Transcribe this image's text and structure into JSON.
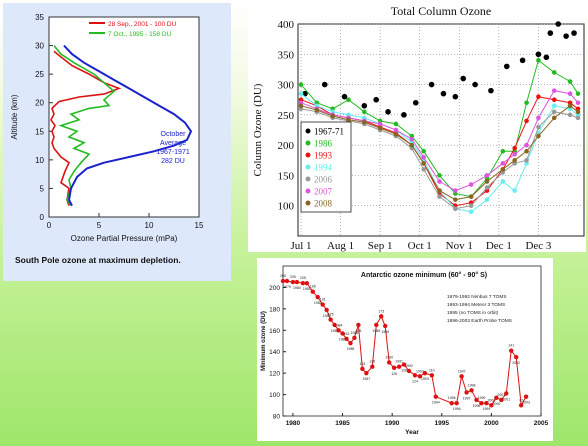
{
  "chart_data": [
    {
      "type": "line",
      "title": "",
      "caption": "South Pole ozone at maximum depletion.",
      "xlabel": "Ozone Partial Pressure (mPa)",
      "ylabel": "Altitude (km)",
      "xlim": [
        0,
        15
      ],
      "ylim": [
        0,
        35
      ],
      "xticks": [
        "0",
        "5",
        "10",
        "15"
      ],
      "yticks": [
        "0",
        "5",
        "10",
        "15",
        "20",
        "25",
        "30",
        "35"
      ],
      "legend_position": "top-right",
      "series": [
        {
          "name": "28 Sep., 2001 - 100 DU",
          "color": "#dd1111",
          "x": [
            2.0,
            1.8,
            2.0,
            1.2,
            1.6,
            2.0,
            1.2,
            0.5,
            0.3,
            0.5,
            0.3,
            0.6,
            0.2,
            0.5,
            0.3,
            1.0,
            3.0,
            5.5,
            7.0,
            5.5,
            4.0,
            2.3,
            1.2,
            0.5
          ],
          "y": [
            2,
            3,
            5,
            6,
            8,
            9.5,
            10.5,
            12,
            13,
            14,
            15,
            16,
            17,
            18,
            19,
            20.2,
            21,
            21.5,
            22.5,
            23.5,
            25,
            26.5,
            28,
            29
          ]
        },
        {
          "name": "7 Oct., 1995 - 158 DU",
          "color": "#22bb22",
          "x": [
            2.2,
            1.8,
            2.2,
            2.0,
            2.5,
            3.2,
            4.0,
            2.5,
            3.5,
            2.0,
            2.8,
            1.2,
            3.0,
            2.2,
            4.0,
            6.0,
            5.5,
            6.5,
            5.5,
            4.5,
            2.5,
            1.2,
            0.5
          ],
          "y": [
            2,
            3,
            5,
            6.5,
            8,
            9.5,
            11,
            12,
            13,
            14,
            15,
            16,
            17,
            18,
            19,
            19.5,
            20.5,
            22,
            23.5,
            25,
            27,
            28.5,
            30
          ]
        },
        {
          "name": "October Average 1967-1971 282 DU",
          "color": "#1a22cc",
          "x": [
            2.3,
            2.0,
            2.2,
            2.8,
            3.8,
            5.5,
            8.0,
            10.5,
            12.5,
            13.8,
            14.2,
            13.6,
            12.5,
            11.0,
            9.5,
            8.0,
            6.5,
            5.0,
            3.5,
            2.3,
            1.5
          ],
          "y": [
            2,
            3,
            5,
            7,
            8.5,
            9.5,
            10.5,
            11.5,
            12.5,
            13.5,
            15,
            16.5,
            18,
            19.5,
            21,
            22.5,
            24,
            25.5,
            27,
            28.5,
            30
          ]
        }
      ],
      "annotation": [
        "October",
        "Average",
        "1967-1971",
        "282 DU"
      ]
    },
    {
      "type": "scatter",
      "title": "Total Column Ozone",
      "xlabel": "",
      "ylabel": "Column Ozone (DU)",
      "ylim": [
        50,
        400
      ],
      "xticks": [
        "Jul 1",
        "Aug 1",
        "Sep 1",
        "Oct 1",
        "Nov 1",
        "Dec 1",
        "Dec 3"
      ],
      "yticks": [
        "100",
        "150",
        "200",
        "250",
        "300",
        "350",
        "400"
      ],
      "legend_position": "bottom-left",
      "series": [
        {
          "name": "1967-71",
          "color": "#000000",
          "x": [
            0.1,
            0.6,
            1.1,
            1.6,
            1.9,
            2.2,
            2.6,
            2.9,
            3.3,
            3.6,
            3.9,
            4.1,
            4.4,
            4.8,
            5.2,
            5.6,
            6.0,
            6.2,
            6.3,
            6.5,
            6.7,
            6.9
          ],
          "y": [
            285,
            300,
            280,
            265,
            275,
            255,
            250,
            270,
            300,
            285,
            280,
            310,
            300,
            290,
            330,
            340,
            350,
            345,
            385,
            400,
            380,
            385
          ]
        },
        {
          "name": "1986",
          "color": "#22bb22",
          "x": [
            0,
            0.4,
            0.8,
            1.2,
            1.6,
            2.0,
            2.4,
            2.8,
            3.1,
            3.5,
            3.9,
            4.3,
            4.7,
            5.1,
            5.4,
            5.7,
            6.0,
            6.4,
            6.8,
            7.0
          ],
          "y": [
            300,
            270,
            260,
            275,
            255,
            240,
            235,
            215,
            190,
            150,
            120,
            115,
            145,
            190,
            190,
            270,
            340,
            320,
            305,
            285
          ]
        },
        {
          "name": "1993",
          "color": "#ee1111",
          "x": [
            0,
            0.4,
            0.8,
            1.2,
            1.6,
            2.0,
            2.4,
            2.8,
            3.1,
            3.5,
            3.9,
            4.3,
            4.7,
            5.1,
            5.4,
            5.7,
            6.0,
            6.4,
            6.8,
            7.0
          ],
          "y": [
            275,
            265,
            250,
            245,
            240,
            230,
            220,
            200,
            170,
            120,
            100,
            105,
            125,
            160,
            195,
            240,
            280,
            275,
            270,
            260
          ]
        },
        {
          "name": "1994",
          "color": "#66eeee",
          "x": [
            0,
            0.4,
            0.8,
            1.2,
            1.6,
            2.0,
            2.4,
            2.8,
            3.1,
            3.5,
            3.9,
            4.3,
            4.7,
            5.1,
            5.4,
            5.7,
            6.0,
            6.4,
            6.8,
            7.0
          ],
          "y": [
            285,
            265,
            255,
            250,
            245,
            235,
            225,
            205,
            175,
            125,
            95,
            90,
            110,
            140,
            125,
            170,
            220,
            265,
            260,
            250
          ]
        },
        {
          "name": "2006",
          "color": "#999999",
          "x": [
            0,
            0.4,
            0.8,
            1.2,
            1.6,
            2.0,
            2.4,
            2.8,
            3.1,
            3.5,
            3.9,
            4.3,
            4.7,
            5.1,
            5.4,
            5.7,
            6.0,
            6.4,
            6.8,
            7.0
          ],
          "y": [
            260,
            255,
            245,
            240,
            235,
            225,
            215,
            195,
            160,
            115,
            95,
            100,
            130,
            155,
            170,
            175,
            230,
            255,
            250,
            245
          ]
        },
        {
          "name": "2007",
          "color": "#dd55dd",
          "x": [
            0,
            0.4,
            0.8,
            1.2,
            1.6,
            2.0,
            2.4,
            2.8,
            3.1,
            3.5,
            3.9,
            4.3,
            4.7,
            5.1,
            5.4,
            5.7,
            6.0,
            6.4,
            6.8,
            7.0
          ],
          "y": [
            270,
            260,
            250,
            245,
            240,
            235,
            225,
            210,
            180,
            140,
            125,
            135,
            150,
            170,
            185,
            200,
            245,
            290,
            285,
            270
          ]
        },
        {
          "name": "2008",
          "color": "#886622",
          "x": [
            0,
            0.4,
            0.8,
            1.2,
            1.6,
            2.0,
            2.4,
            2.8,
            3.1,
            3.5,
            3.9,
            4.3,
            4.7,
            5.1,
            5.4,
            5.7,
            6.0,
            6.4,
            6.8,
            7.0
          ],
          "y": [
            265,
            258,
            248,
            242,
            238,
            228,
            218,
            200,
            170,
            125,
            110,
            115,
            140,
            160,
            175,
            190,
            215,
            245,
            265,
            255
          ]
        }
      ]
    },
    {
      "type": "line",
      "title": "Antarctic ozone minimum (60° - 90° S)",
      "xlabel": "Year",
      "ylabel": "Minimum ozone (DU)",
      "xlim": [
        1979,
        2005
      ],
      "ylim": [
        80,
        220
      ],
      "xticks": [
        "1980",
        "1985",
        "1990",
        "1995",
        "2000",
        "2005"
      ],
      "yticks": [
        "80",
        "100",
        "120",
        "140",
        "160",
        "180",
        "200"
      ],
      "legend_position": "top-right",
      "notes": [
        "1979-1992 Nimbus 7 TOMS",
        "1993-1994 Meteor 3 TOMS",
        "1995 (no TOMS in orbit)",
        "1996-2003 Earth Probe TOMS"
      ],
      "color": "#dd1111",
      "x": [
        1979,
        1979.4,
        1980,
        1980.4,
        1981,
        1981.4,
        1982,
        1982.5,
        1983,
        1983.4,
        1983.8,
        1984.2,
        1984.6,
        1985,
        1985.4,
        1985.8,
        1986.2,
        1986.6,
        1987,
        1987.4,
        1988,
        1988.4,
        1988.9,
        1989.3,
        1989.7,
        1990.2,
        1990.7,
        1991.2,
        1991.7,
        1992.3,
        1992.8,
        1993.3,
        1994,
        1994.4,
        1996,
        1996.5,
        1997,
        1997.5,
        1998,
        1998.5,
        1999,
        1999.5,
        2000,
        2000.5,
        2001,
        2001.5,
        2002,
        2002.5,
        2003,
        2003.5
      ],
      "y": [
        206,
        206,
        205,
        205,
        204,
        204,
        196,
        191,
        184,
        179,
        170,
        165,
        160,
        157,
        152,
        148,
        153,
        165,
        124,
        120,
        126,
        165,
        173,
        164,
        130,
        125,
        126,
        128,
        122,
        118,
        117,
        120,
        118,
        98,
        92,
        92,
        117,
        102,
        104,
        95,
        92,
        92,
        90,
        97,
        95,
        101,
        141,
        135,
        90,
        98
      ],
      "point_labels": [
        "206",
        "1979",
        "205",
        "1980",
        "205",
        "1981",
        "196",
        "1982",
        "191",
        "1983",
        "175",
        "1983",
        "1984",
        "1984",
        "152",
        "1985",
        "1986",
        "155",
        "124",
        "1987",
        "126",
        "1988",
        "173",
        "1989",
        "1990",
        "126",
        "1991",
        "128",
        "1992",
        "124",
        "1993",
        "1993",
        "110",
        "1994",
        "1996",
        "1996",
        "1997",
        "1997",
        "1998",
        "1998",
        "1999",
        "1999",
        "2000",
        "2000",
        "2001",
        "2001",
        "141",
        "2002",
        "97",
        "2003"
      ]
    }
  ]
}
